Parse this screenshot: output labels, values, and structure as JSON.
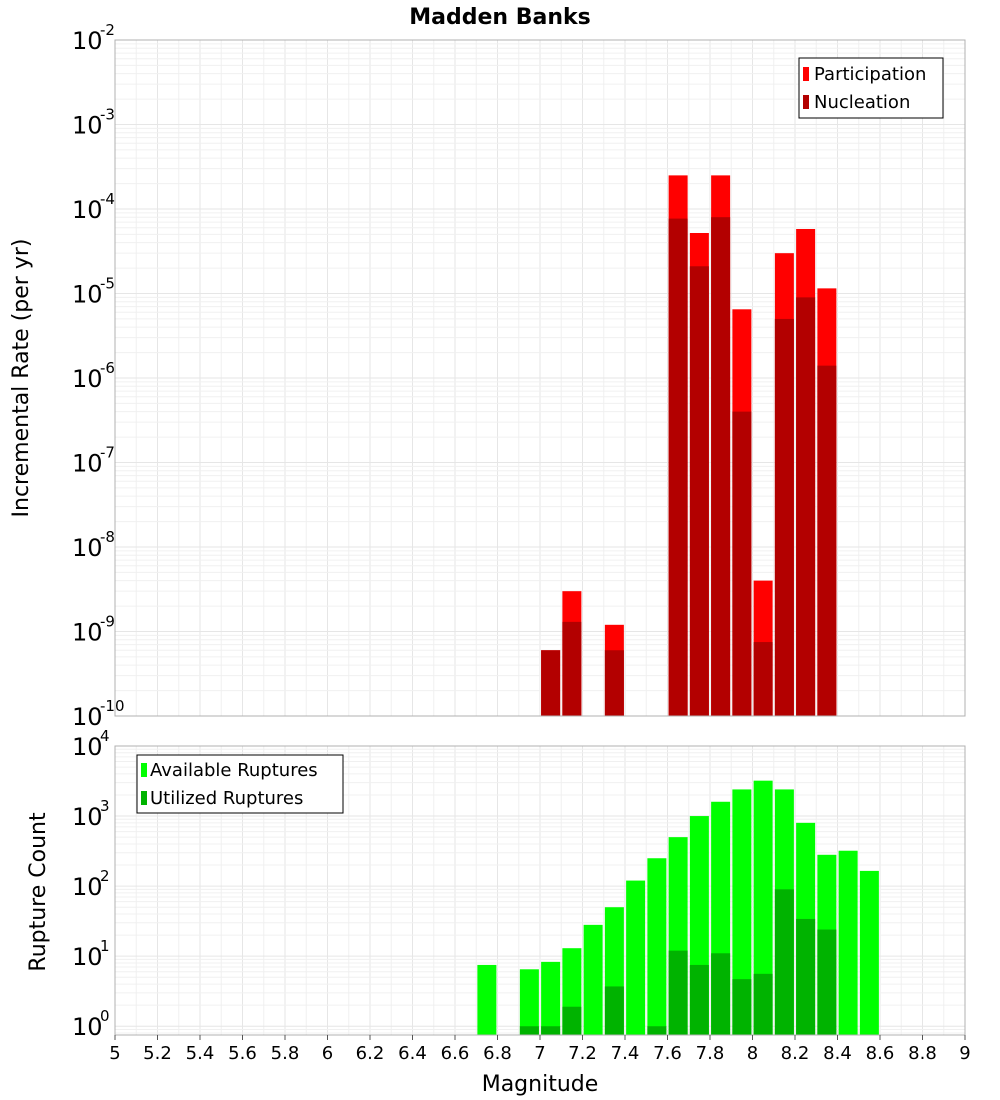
{
  "chart_data": [
    {
      "type": "bar",
      "title": "Madden Banks",
      "xlabel": "",
      "ylabel": "Incremental Rate (per yr)",
      "yscale": "log",
      "ylim": [
        1e-10,
        0.01
      ],
      "xlim": [
        5,
        9
      ],
      "grid": true,
      "legend_position": "top-right",
      "yticks": [
        {
          "base": "10",
          "exp": "-10"
        },
        {
          "base": "10",
          "exp": "-9"
        },
        {
          "base": "10",
          "exp": "-8"
        },
        {
          "base": "10",
          "exp": "-7"
        },
        {
          "base": "10",
          "exp": "-6"
        },
        {
          "base": "10",
          "exp": "-5"
        },
        {
          "base": "10",
          "exp": "-4"
        },
        {
          "base": "10",
          "exp": "-3"
        },
        {
          "base": "10",
          "exp": "-2"
        }
      ],
      "x": [
        7.05,
        7.15,
        7.35,
        7.65,
        7.75,
        7.85,
        7.95,
        8.05,
        8.15,
        8.25,
        8.35
      ],
      "series": [
        {
          "name": "Participation",
          "color": "#ff0000",
          "values": [
            6e-10,
            3e-09,
            1.2e-09,
            0.00025,
            5.2e-05,
            0.00025,
            6.5e-06,
            4e-09,
            3e-05,
            5.8e-05,
            1.15e-05
          ]
        },
        {
          "name": "Nucleation",
          "color": "#b30000",
          "values": [
            6e-10,
            1.3e-09,
            6e-10,
            7.7e-05,
            2.1e-05,
            8e-05,
            4e-07,
            7.5e-10,
            5e-06,
            9e-06,
            1.4e-06
          ]
        }
      ]
    },
    {
      "type": "bar",
      "title": "",
      "xlabel": "Magnitude",
      "ylabel": "Rupture Count",
      "yscale": "log",
      "ylim": [
        0.75,
        10000
      ],
      "xlim": [
        5,
        9
      ],
      "grid": true,
      "legend_position": "top-left",
      "xticks": [
        "5",
        "5.2",
        "5.4",
        "5.6",
        "5.8",
        "6",
        "6.2",
        "6.4",
        "6.6",
        "6.8",
        "7",
        "7.2",
        "7.4",
        "7.6",
        "7.8",
        "8",
        "8.2",
        "8.4",
        "8.6",
        "8.8",
        "9"
      ],
      "yticks": [
        {
          "base": "10",
          "exp": "0"
        },
        {
          "base": "10",
          "exp": "1"
        },
        {
          "base": "10",
          "exp": "2"
        },
        {
          "base": "10",
          "exp": "3"
        },
        {
          "base": "10",
          "exp": "4"
        }
      ],
      "x": [
        6.75,
        6.95,
        7.05,
        7.15,
        7.25,
        7.35,
        7.45,
        7.55,
        7.65,
        7.75,
        7.85,
        7.95,
        8.05,
        8.15,
        8.25,
        8.35,
        8.45,
        8.55
      ],
      "series": [
        {
          "name": "Available Ruptures",
          "color": "#00ff00",
          "values": [
            7.5,
            6.5,
            8.3,
            13,
            28,
            50,
            120,
            250,
            500,
            1000,
            1600,
            2400,
            3200,
            2400,
            800,
            280,
            320,
            165
          ]
        },
        {
          "name": "Utilized Ruptures",
          "color": "#00b300",
          "values": [
            0,
            1,
            1,
            1.9,
            0,
            3.7,
            0,
            1,
            12,
            7.5,
            11,
            4.7,
            5.6,
            90,
            34,
            24,
            0,
            0
          ]
        }
      ]
    }
  ]
}
